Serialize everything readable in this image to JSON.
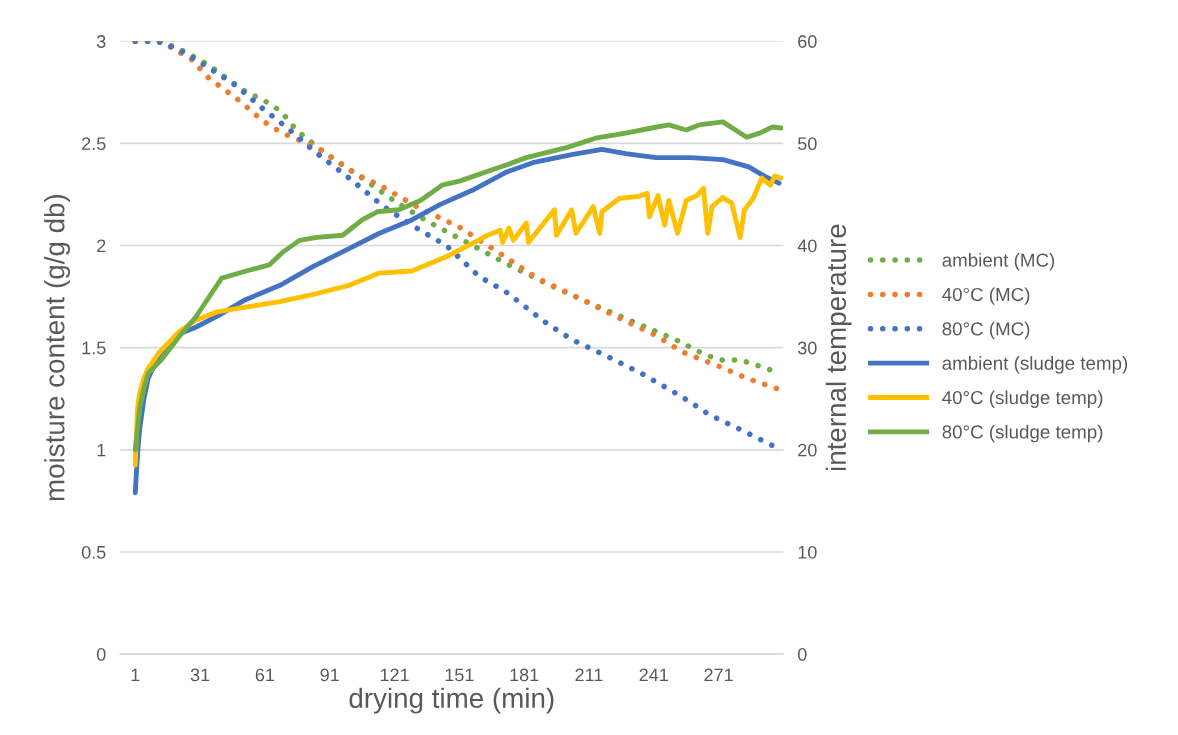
{
  "chart_data": {
    "type": "line",
    "xlabel": "drying time (min)",
    "ylabel": "moisture content (g/g db)",
    "y2label": "internal temperature",
    "xlim": [
      -6,
      301
    ],
    "xticks": [
      1,
      31,
      61,
      91,
      121,
      151,
      181,
      211,
      241,
      271
    ],
    "ylim": [
      0,
      3
    ],
    "yticks": [
      0,
      0.5,
      1,
      1.5,
      2,
      2.5,
      3
    ],
    "y2lim": [
      0,
      60
    ],
    "y2ticks": [
      0,
      10,
      20,
      30,
      40,
      50,
      60
    ],
    "grid": "y",
    "legend": "right",
    "marker": "none",
    "series": [
      {
        "name": "ambient (MC)",
        "color": "#70ad47",
        "line_style": "dotted",
        "x": [
          1,
          11,
          20,
          34,
          51,
          64,
          69,
          76,
          88,
          106,
          122,
          136,
          150,
          159,
          173,
          192,
          211,
          233,
          253,
          262,
          271,
          281,
          290,
          298
        ],
        "values": [
          3.0,
          3.0,
          2.97,
          2.89,
          2.76,
          2.69,
          2.65,
          2.56,
          2.46,
          2.33,
          2.21,
          2.12,
          2.04,
          1.99,
          1.91,
          1.81,
          1.72,
          1.62,
          1.53,
          1.48,
          1.44,
          1.44,
          1.41,
          1.38
        ]
      },
      {
        "name": "40°C (MC)",
        "color": "#ed7d31",
        "line_style": "dotted",
        "x": [
          1,
          13,
          27,
          35,
          49,
          60,
          69,
          85,
          103,
          115,
          133,
          151,
          170,
          187,
          207,
          224,
          242,
          254,
          271,
          284,
          298
        ],
        "values": [
          3.0,
          3.0,
          2.91,
          2.82,
          2.71,
          2.61,
          2.55,
          2.48,
          2.35,
          2.29,
          2.18,
          2.09,
          1.96,
          1.84,
          1.74,
          1.65,
          1.56,
          1.48,
          1.41,
          1.35,
          1.3
        ]
      },
      {
        "name": "80°C (MC)",
        "color": "#4472c4",
        "line_style": "dotted",
        "x": [
          1,
          11,
          21,
          35,
          48,
          60,
          72,
          84,
          100,
          116,
          132,
          145,
          160,
          173,
          190,
          203,
          219,
          236,
          254,
          267,
          281,
          298
        ],
        "values": [
          3.0,
          3.0,
          2.96,
          2.87,
          2.78,
          2.67,
          2.57,
          2.46,
          2.33,
          2.19,
          2.08,
          2.0,
          1.85,
          1.77,
          1.63,
          1.54,
          1.46,
          1.37,
          1.26,
          1.17,
          1.1,
          1.01
        ]
      },
      {
        "name": "ambient (sludge temp)",
        "color": "#4472c4",
        "line_style": "solid",
        "axis": "y2",
        "x": [
          1,
          2,
          3,
          5,
          7,
          12,
          17,
          21,
          29,
          40,
          52,
          68,
          83,
          99,
          114,
          129,
          142,
          157,
          173,
          185,
          203,
          217,
          228,
          242,
          258,
          273,
          285,
          293,
          299
        ],
        "values": [
          15.8,
          19.5,
          22,
          25,
          27,
          29.3,
          30.5,
          31.3,
          32.0,
          33.2,
          34.7,
          36.1,
          37.9,
          39.6,
          41.2,
          42.5,
          44.0,
          45.4,
          47.2,
          48.1,
          48.9,
          49.4,
          49.0,
          48.6,
          48.6,
          48.4,
          47.7,
          46.7,
          46.1
        ]
      },
      {
        "name": "40°C (sludge temp)",
        "color": "#ffc000",
        "line_style": "solid",
        "axis": "y2",
        "x": [
          1,
          2,
          3,
          5,
          7,
          12,
          21,
          29,
          39,
          50,
          68,
          85,
          100,
          114,
          129,
          145,
          157,
          164,
          170,
          171,
          174,
          176,
          182,
          183,
          195,
          196,
          203,
          205,
          213,
          216,
          217,
          225,
          234,
          238,
          239,
          243,
          246,
          248,
          252,
          256,
          261,
          264,
          266,
          268,
          273,
          275,
          277,
          281,
          283,
          287,
          291,
          295,
          297,
          300
        ],
        "values": [
          18.5,
          24,
          25.5,
          27,
          28,
          29.5,
          31.5,
          32.7,
          33.5,
          33.9,
          34.5,
          35.3,
          36.1,
          37.3,
          37.5,
          38.9,
          40.2,
          41.0,
          41.5,
          40.3,
          41.7,
          40.5,
          42.2,
          40.3,
          43.5,
          41.0,
          43.5,
          41.2,
          43.8,
          41.2,
          43.3,
          44.6,
          44.8,
          45.1,
          42.8,
          44.9,
          42.0,
          44.4,
          41.2,
          44.4,
          44.9,
          45.6,
          41.2,
          43.8,
          44.7,
          44.4,
          44.2,
          40.8,
          43.5,
          44.6,
          46.6,
          45.9,
          46.8,
          46.6
        ]
      },
      {
        "name": "80°C (sludge temp)",
        "color": "#70ad47",
        "line_style": "solid",
        "axis": "y2",
        "x": [
          1,
          2,
          3,
          5,
          7,
          13,
          21,
          29,
          41,
          54,
          63,
          69,
          77,
          85,
          97,
          106,
          113,
          123,
          133,
          143,
          151,
          173,
          182,
          201,
          214,
          228,
          240,
          248,
          256,
          262,
          273,
          284,
          290,
          296,
          300
        ],
        "values": [
          20,
          22,
          24,
          26,
          27.5,
          28.8,
          31,
          33.0,
          36.8,
          37.6,
          38.1,
          39.3,
          40.5,
          40.8,
          41.0,
          42.5,
          43.3,
          43.5,
          44.4,
          45.9,
          46.3,
          47.9,
          48.6,
          49.6,
          50.5,
          51.0,
          51.5,
          51.8,
          51.3,
          51.8,
          52.1,
          50.6,
          51.0,
          51.6,
          51.5
        ]
      }
    ]
  }
}
